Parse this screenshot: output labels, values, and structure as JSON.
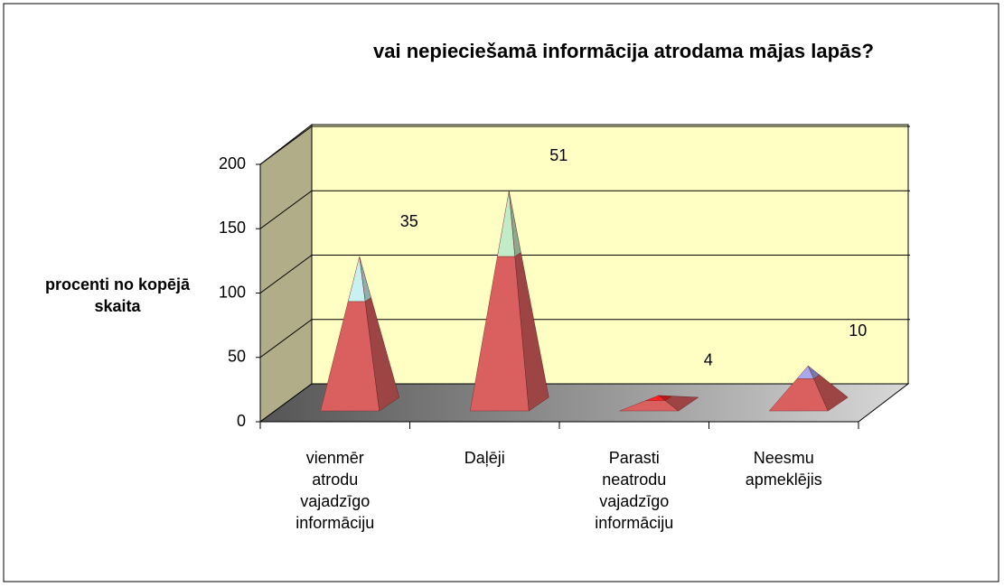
{
  "chart_data": {
    "type": "pyramid3d",
    "stacked": true,
    "title": "vai nepieciešamā informācija atrodama mājas lapās?",
    "y_label": "procenti no kopējā skaita",
    "categories": [
      "vienmēr atrodu vajadzīgo informāciju",
      "Daļēji",
      "Parasti neatrodu vajadzīgo informāciju",
      "Neesmu apmeklējis"
    ],
    "series": [
      {
        "color": "#d9605f",
        "values": [
          85,
          120,
          8,
          25
        ]
      },
      {
        "colors": [
          "#c8f2f2",
          "#c2ebc8",
          "#ff2020",
          "#a8a8f0"
        ],
        "values": [
          35,
          51,
          4,
          10
        ],
        "data_labels": true
      }
    ],
    "ylim": [
      0,
      200
    ],
    "yticks": [
      0,
      50,
      100,
      150,
      200
    ],
    "grid": true
  }
}
